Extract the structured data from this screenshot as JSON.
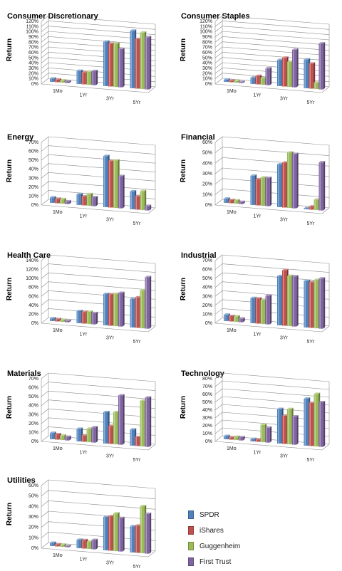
{
  "chart_data": [
    {
      "type": "bar",
      "title": "Consumer Discretionary",
      "ylabel": "Return",
      "categories": [
        "1Mo",
        "1Yr",
        "3Yr",
        "5Yr"
      ],
      "yticks": [
        "0%",
        "10%",
        "20%",
        "30%",
        "40%",
        "50%",
        "60%",
        "70%",
        "80%",
        "90%",
        "100%",
        "110%",
        "120%"
      ],
      "ylim": [
        0,
        120
      ],
      "series": [
        {
          "name": "SPDR",
          "values": [
            6,
            25,
            85,
            110
          ]
        },
        {
          "name": "iShares",
          "values": [
            5,
            23,
            82,
            95
          ]
        },
        {
          "name": "Guggenheim",
          "values": [
            4,
            25,
            83,
            108
          ]
        },
        {
          "name": "First Trust",
          "values": [
            3,
            27,
            73,
            100
          ]
        }
      ]
    },
    {
      "type": "bar",
      "title": "Consumer Staples",
      "ylabel": "Return",
      "categories": [
        "1Mo",
        "1Yr",
        "3Yr",
        "5Yr"
      ],
      "yticks": [
        "0%",
        "10%",
        "20%",
        "30%",
        "40%",
        "50%",
        "60%",
        "70%",
        "80%",
        "90%",
        "100%",
        "110%",
        "120%"
      ],
      "ylim": [
        0,
        120
      ],
      "series": [
        {
          "name": "SPDR",
          "values": [
            4,
            12,
            50,
            55
          ]
        },
        {
          "name": "iShares",
          "values": [
            3,
            16,
            55,
            48
          ]
        },
        {
          "name": "Guggenheim",
          "values": [
            3,
            13,
            48,
            12
          ]
        },
        {
          "name": "First Trust",
          "values": [
            2,
            32,
            72,
            88
          ]
        }
      ]
    },
    {
      "type": "bar",
      "title": "Energy",
      "ylabel": "Return",
      "categories": [
        "1Mo",
        "1Yr",
        "3Yr",
        "5Yr"
      ],
      "yticks": [
        "0%",
        "10%",
        "20%",
        "30%",
        "40%",
        "50%",
        "60%",
        "70%"
      ],
      "ylim": [
        0,
        70
      ],
      "series": [
        {
          "name": "SPDR",
          "values": [
            6,
            12,
            57,
            20
          ]
        },
        {
          "name": "iShares",
          "values": [
            5,
            10,
            52,
            15
          ]
        },
        {
          "name": "Guggenheim",
          "values": [
            5,
            13,
            53,
            21
          ]
        },
        {
          "name": "First Trust",
          "values": [
            3,
            10,
            36,
            5
          ]
        }
      ]
    },
    {
      "type": "bar",
      "title": "Financial",
      "ylabel": "Return",
      "categories": [
        "1Mo",
        "1Yr",
        "3Yr",
        "5Yr"
      ],
      "yticks": [
        "0%",
        "10%",
        "20%",
        "30%",
        "40%",
        "50%",
        "60%"
      ],
      "ylim": [
        0,
        60
      ],
      "series": [
        {
          "name": "SPDR",
          "values": [
            4,
            28,
            41,
            1
          ]
        },
        {
          "name": "iShares",
          "values": [
            3,
            25,
            43,
            3
          ]
        },
        {
          "name": "Guggenheim",
          "values": [
            3,
            27,
            53,
            10
          ]
        },
        {
          "name": "First Trust",
          "values": [
            2,
            27,
            52,
            46
          ]
        }
      ]
    },
    {
      "type": "bar",
      "title": "Health Care",
      "ylabel": "Return",
      "categories": [
        "1Mo",
        "1Yr",
        "3Yr",
        "5Yr"
      ],
      "yticks": [
        "0%",
        "20%",
        "40%",
        "60%",
        "80%",
        "100%",
        "120%",
        "140%"
      ],
      "ylim": [
        0,
        140
      ],
      "series": [
        {
          "name": "SPDR",
          "values": [
            6,
            27,
            70,
            64
          ]
        },
        {
          "name": "iShares",
          "values": [
            5,
            26,
            70,
            68
          ]
        },
        {
          "name": "Guggenheim",
          "values": [
            4,
            27,
            72,
            85
          ]
        },
        {
          "name": "First Trust",
          "values": [
            3,
            25,
            75,
            115
          ]
        }
      ]
    },
    {
      "type": "bar",
      "title": "Industrial",
      "ylabel": "Return",
      "categories": [
        "1Mo",
        "1Yr",
        "3Yr",
        "5Yr"
      ],
      "yticks": [
        "0%",
        "10%",
        "20%",
        "30%",
        "40%",
        "50%",
        "60%",
        "70%"
      ],
      "ylim": [
        0,
        70
      ],
      "series": [
        {
          "name": "SPDR",
          "values": [
            7,
            28,
            55,
            52
          ]
        },
        {
          "name": "iShares",
          "values": [
            6,
            28,
            62,
            51
          ]
        },
        {
          "name": "Guggenheim",
          "values": [
            6,
            27,
            56,
            54
          ]
        },
        {
          "name": "First Trust",
          "values": [
            4,
            32,
            56,
            56
          ]
        }
      ]
    },
    {
      "type": "bar",
      "title": "Materials",
      "ylabel": "Return",
      "categories": [
        "1Mo",
        "1Yr",
        "3Yr",
        "5Yr"
      ],
      "yticks": [
        "0%",
        "10%",
        "20%",
        "30%",
        "40%",
        "50%",
        "60%",
        "70%"
      ],
      "ylim": [
        0,
        70
      ],
      "series": [
        {
          "name": "SPDR",
          "values": [
            7,
            14,
            35,
            18
          ]
        },
        {
          "name": "iShares",
          "values": [
            6,
            7,
            20,
            10
          ]
        },
        {
          "name": "Guggenheim",
          "values": [
            5,
            15,
            36,
            51
          ]
        },
        {
          "name": "First Trust",
          "values": [
            4,
            17,
            55,
            55
          ]
        }
      ]
    },
    {
      "type": "bar",
      "title": "Technology",
      "ylabel": "Return",
      "categories": [
        "1Mo",
        "1Yr",
        "3Yr",
        "5Yr"
      ],
      "yticks": [
        "0%",
        "10%",
        "20%",
        "30%",
        "40%",
        "50%",
        "60%",
        "70%",
        "80%"
      ],
      "ylim": [
        0,
        80
      ],
      "series": [
        {
          "name": "SPDR",
          "values": [
            4,
            3,
            44,
            60
          ]
        },
        {
          "name": "iShares",
          "values": [
            3,
            3,
            36,
            55
          ]
        },
        {
          "name": "Guggenheim",
          "values": [
            4,
            22,
            45,
            67
          ]
        },
        {
          "name": "First Trust",
          "values": [
            4,
            19,
            36,
            57
          ]
        }
      ]
    },
    {
      "type": "bar",
      "title": "Utilities",
      "ylabel": "Return",
      "categories": [
        "1Mo",
        "1Yr",
        "3Yr",
        "5Yr"
      ],
      "yticks": [
        "0%",
        "10%",
        "20%",
        "30%",
        "40%",
        "50%",
        "60%"
      ],
      "ylim": [
        0,
        60
      ],
      "series": [
        {
          "name": "SPDR",
          "values": [
            3,
            8,
            32,
            25
          ]
        },
        {
          "name": "iShares",
          "values": [
            2,
            8,
            33,
            26
          ]
        },
        {
          "name": "Guggenheim",
          "values": [
            2,
            7,
            36,
            45
          ]
        },
        {
          "name": "First Trust",
          "values": [
            1,
            9,
            32,
            38
          ]
        }
      ]
    }
  ],
  "legend": {
    "placement": "bottom-right",
    "items": [
      {
        "label": "SPDR",
        "color": "#4f81bd"
      },
      {
        "label": "iShares",
        "color": "#c0504d"
      },
      {
        "label": "Guggenheim",
        "color": "#9bbb59"
      },
      {
        "label": "First Trust",
        "color": "#8064a2"
      }
    ]
  }
}
